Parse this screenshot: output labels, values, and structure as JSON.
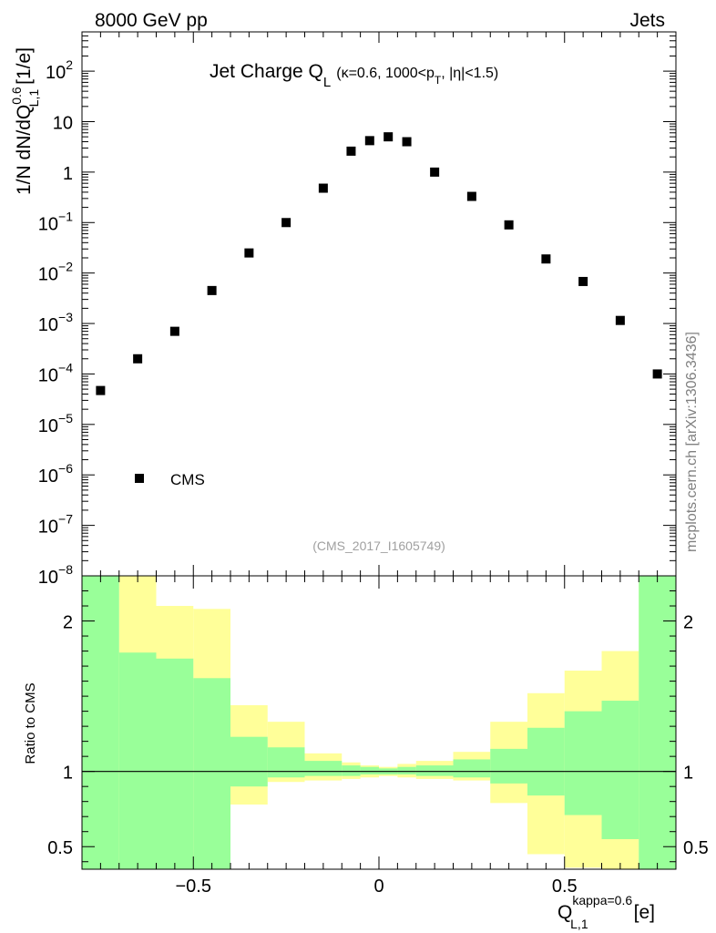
{
  "header": {
    "left_label": "8000 GeV pp",
    "right_label": "Jets",
    "side_label": "mcplots.cern.ch [arXiv:1306.3436]"
  },
  "chart_data": [
    {
      "type": "scatter",
      "panel": "main",
      "title_main": "Jet Charge Q",
      "title_sub": "L",
      "title_detail_1": "(κ=0.6, 1000<p",
      "title_detail_sub": "T",
      "title_detail_2": ", |η|<1.5)",
      "watermark": "(CMS_2017_I1605749)",
      "ylabel_main": "1/N dN/dQ",
      "ylabel_sup": "0.6",
      "ylabel_sub": "L,1",
      "ylabel_unit": "[1/e]",
      "yscale": "log",
      "xlim": [
        -0.8,
        0.8
      ],
      "ylim": [
        1e-08,
        600
      ],
      "y_ticks": [
        {
          "value": 100,
          "label": "10",
          "exp": "2"
        },
        {
          "value": 10,
          "label": "10",
          "exp": ""
        },
        {
          "value": 1,
          "label": "1",
          "exp": ""
        },
        {
          "value": 0.1,
          "label": "10",
          "exp": "−1"
        },
        {
          "value": 0.01,
          "label": "10",
          "exp": "−2"
        },
        {
          "value": 0.001,
          "label": "10",
          "exp": "−3"
        },
        {
          "value": 0.0001,
          "label": "10",
          "exp": "−4"
        },
        {
          "value": 1e-05,
          "label": "10",
          "exp": "−5"
        },
        {
          "value": 1e-06,
          "label": "10",
          "exp": "−6"
        },
        {
          "value": 1e-07,
          "label": "10",
          "exp": "−7"
        },
        {
          "value": 1e-08,
          "label": "10",
          "exp": "−8"
        }
      ],
      "legend": {
        "position": "bottom-left",
        "entries": [
          "CMS"
        ]
      },
      "series": [
        {
          "name": "CMS",
          "x": [
            -0.75,
            -0.65,
            -0.55,
            -0.45,
            -0.35,
            -0.25,
            -0.15,
            -0.075,
            -0.025,
            0.025,
            0.075,
            0.15,
            0.25,
            0.35,
            0.45,
            0.55,
            0.65,
            0.75
          ],
          "y": [
            4.7e-05,
            0.0002,
            0.0007,
            0.0045,
            0.025,
            0.1,
            0.48,
            2.6,
            4.2,
            5.0,
            4.0,
            1.0,
            0.33,
            0.09,
            0.019,
            0.0068,
            0.00115,
            0.0001
          ]
        }
      ]
    },
    {
      "type": "area",
      "panel": "ratio",
      "ylabel": "Ratio to CMS",
      "xlabel_main": "Q",
      "xlabel_sup": "kappa=0.6",
      "xlabel_sub": "L,1",
      "xlabel_unit": "[e]",
      "xlim": [
        -0.8,
        0.8
      ],
      "ylim": [
        0.35,
        2.3
      ],
      "reference_line": 1,
      "x_ticks": [
        {
          "value": -0.5,
          "label": "−0.5"
        },
        {
          "value": 0,
          "label": "0"
        },
        {
          "value": 0.5,
          "label": "0.5"
        }
      ],
      "y_ticks": [
        {
          "value": 0.5,
          "label": "0.5"
        },
        {
          "value": 1,
          "label": "1"
        },
        {
          "value": 2,
          "label": "2"
        }
      ],
      "colors": {
        "inner_band": "#99ff99",
        "outer_band": "#ffff99"
      },
      "bins": [
        -0.8,
        -0.7,
        -0.6,
        -0.5,
        -0.4,
        -0.3,
        -0.2,
        -0.1,
        -0.05,
        0.0,
        0.05,
        0.1,
        0.2,
        0.3,
        0.4,
        0.5,
        0.6,
        0.7,
        0.8
      ],
      "outer_band": {
        "upper": [
          2.3,
          2.3,
          2.1,
          2.08,
          1.44,
          1.33,
          1.12,
          1.06,
          1.04,
          1.03,
          1.05,
          1.07,
          1.13,
          1.33,
          1.52,
          1.67,
          1.8,
          2.3
        ],
        "lower": [
          0.35,
          0.35,
          0.35,
          0.35,
          0.78,
          0.93,
          0.94,
          0.95,
          0.96,
          0.97,
          0.96,
          0.95,
          0.94,
          0.79,
          0.45,
          0.36,
          0.35,
          0.35
        ]
      },
      "inner_band": {
        "upper": [
          2.3,
          1.79,
          1.75,
          1.62,
          1.23,
          1.16,
          1.07,
          1.04,
          1.03,
          1.02,
          1.03,
          1.04,
          1.08,
          1.15,
          1.29,
          1.4,
          1.47,
          2.3
        ],
        "lower": [
          0.35,
          0.35,
          0.35,
          0.35,
          0.9,
          0.96,
          0.97,
          0.97,
          0.98,
          0.98,
          0.98,
          0.97,
          0.96,
          0.92,
          0.84,
          0.71,
          0.55,
          0.35
        ]
      }
    }
  ]
}
